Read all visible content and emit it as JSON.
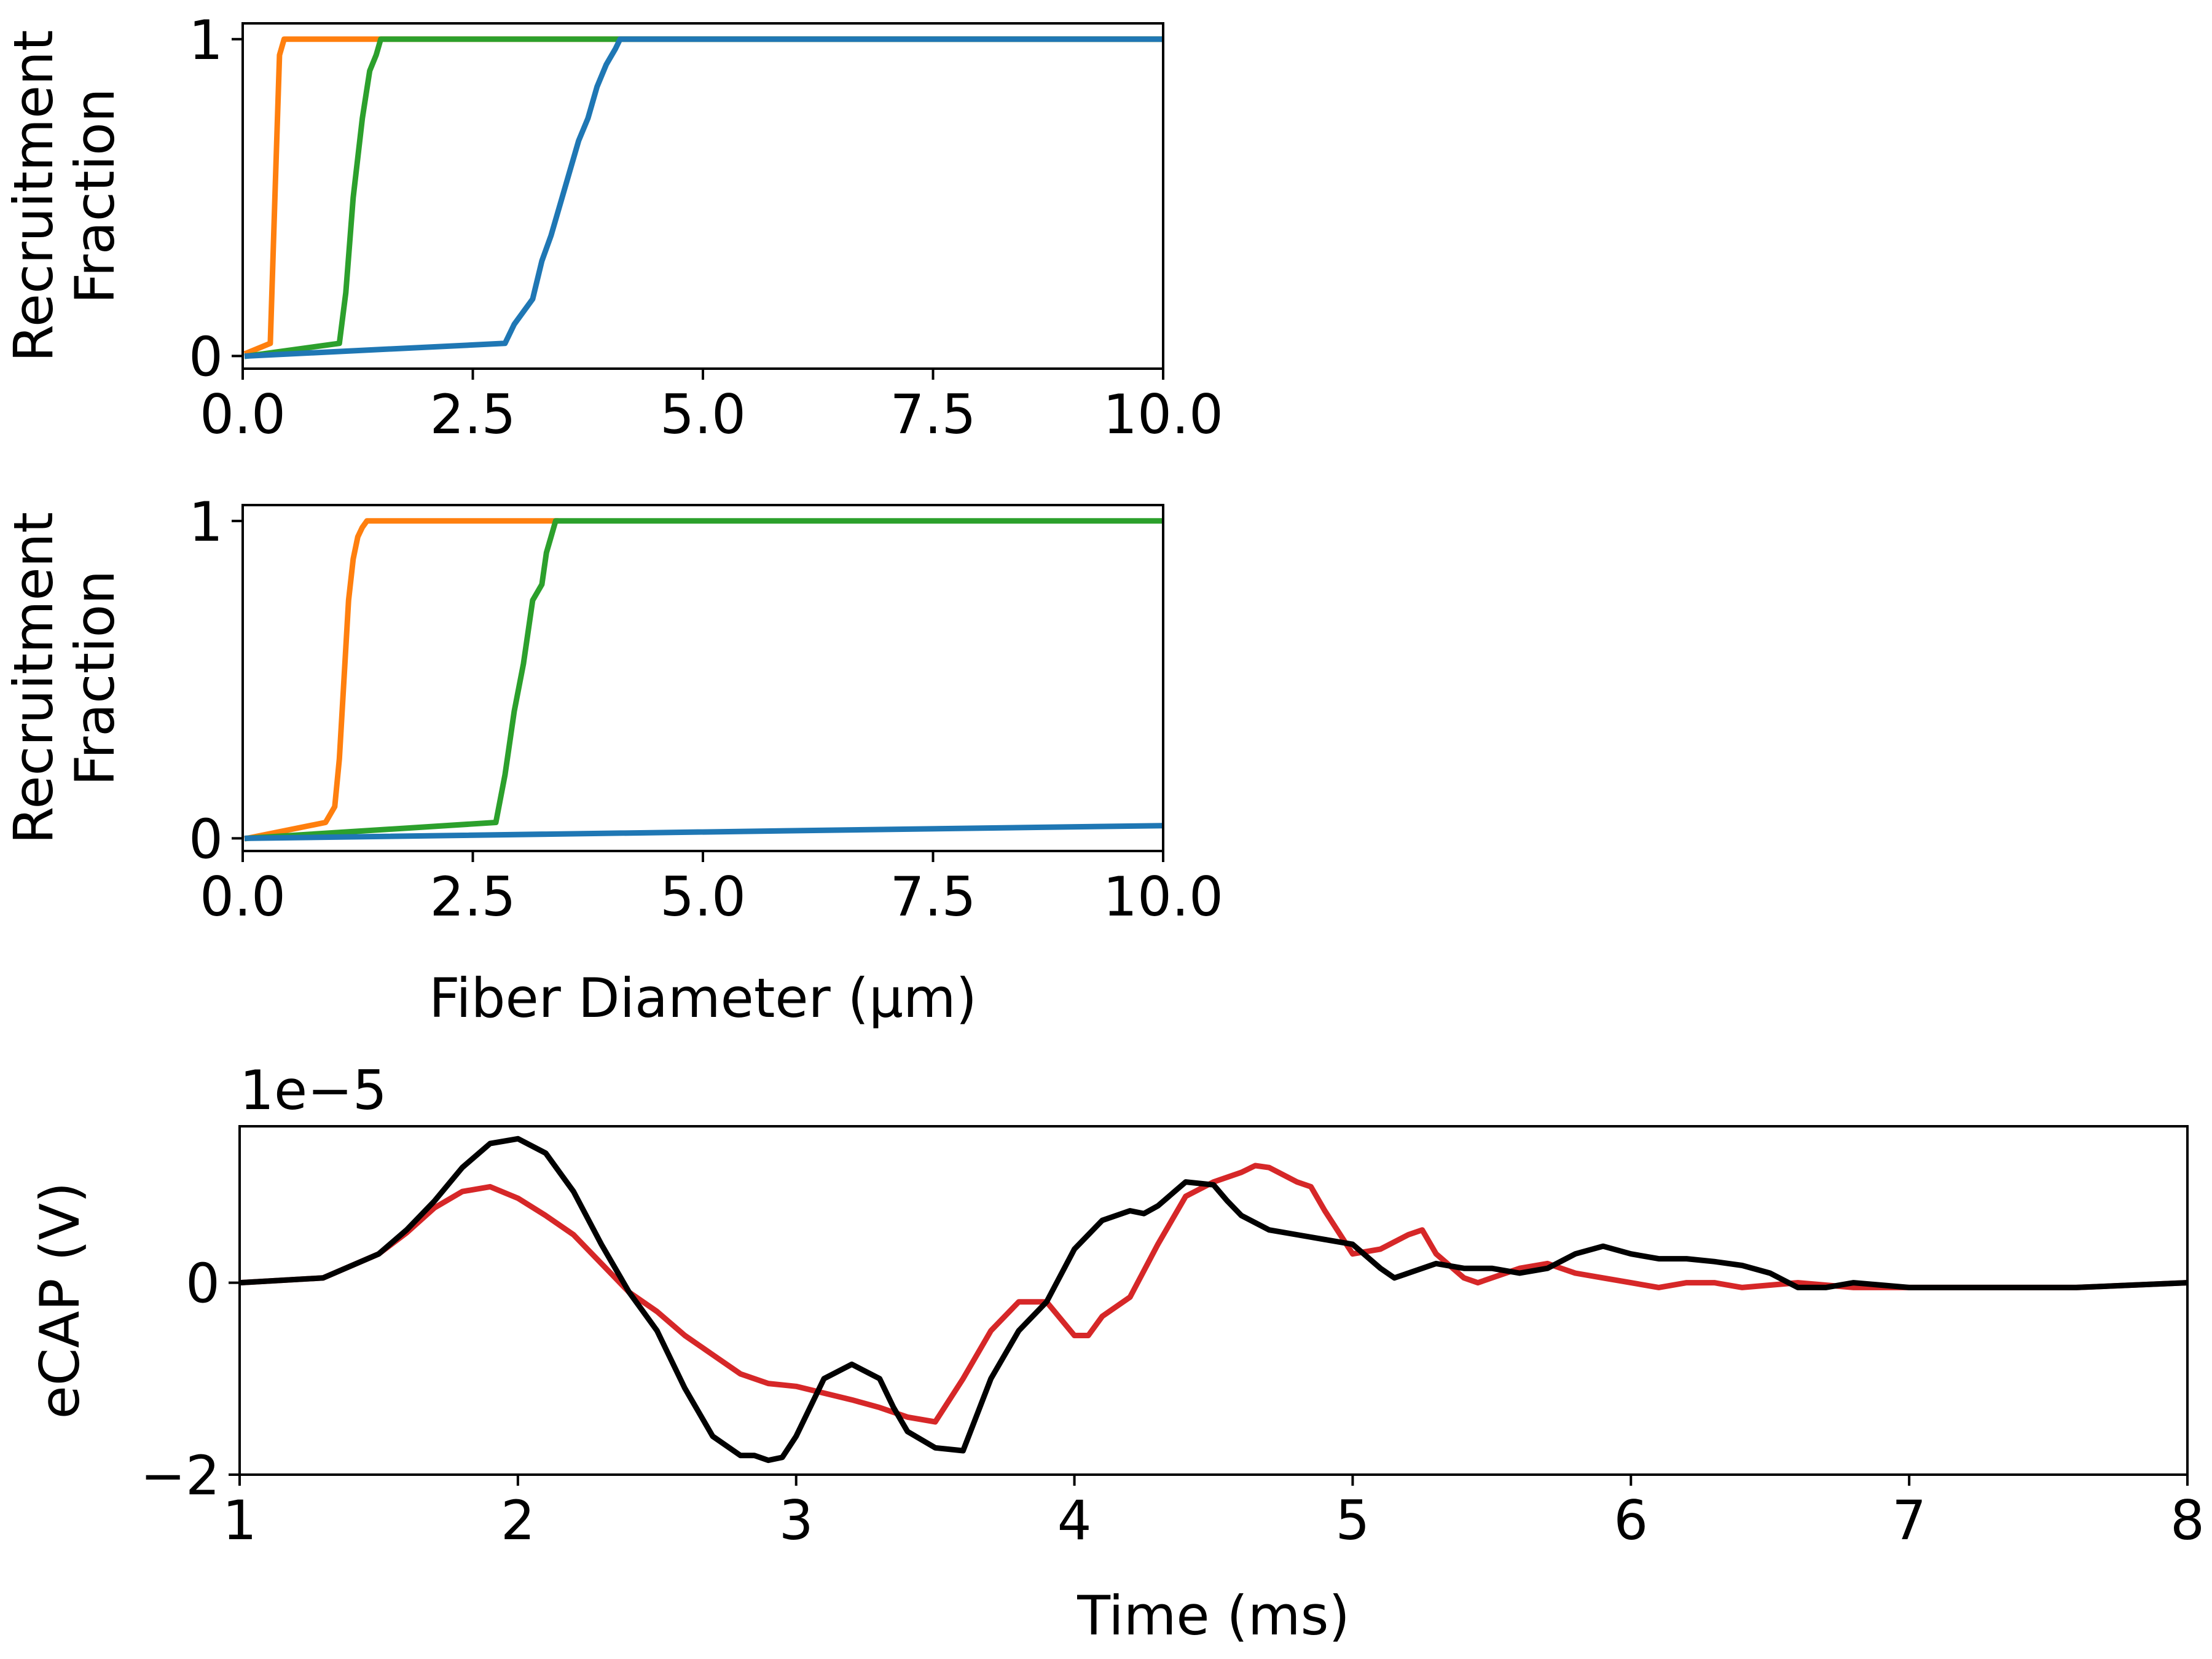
{
  "chart_data": [
    {
      "type": "line",
      "title": "",
      "xlabel": "",
      "ylabel": "Recruitment\nFraction",
      "ylabel_lines": [
        "Recruitment",
        "Fraction"
      ],
      "xlim": [
        0,
        10
      ],
      "ylim": [
        -0.04,
        1.05
      ],
      "xticks": [
        0,
        2.5,
        5,
        7.5,
        10
      ],
      "xtick_labels": [
        "0.0",
        "2.5",
        "5.0",
        "7.5",
        "10.0"
      ],
      "yticks": [
        0,
        1
      ],
      "ytick_labels": [
        "0",
        "1"
      ],
      "grid": false,
      "series": [
        {
          "color": "#ff7f0e",
          "x": [
            0.05,
            0.3,
            0.35,
            0.4,
            0.45,
            10
          ],
          "y": [
            0.01,
            0.04,
            0.5,
            0.95,
            1.0,
            1.0
          ]
        },
        {
          "color": "#2ca02c",
          "x": [
            0.05,
            1.05,
            1.12,
            1.2,
            1.3,
            1.38,
            1.45,
            1.5,
            10
          ],
          "y": [
            0.0,
            0.04,
            0.2,
            0.5,
            0.75,
            0.9,
            0.95,
            1.0,
            1.0
          ]
        },
        {
          "color": "#1f77b4",
          "x": [
            0.05,
            2.85,
            2.95,
            3.05,
            3.15,
            3.25,
            3.35,
            3.45,
            3.55,
            3.65,
            3.75,
            3.85,
            3.95,
            4.05,
            4.1,
            10
          ],
          "y": [
            0.0,
            0.04,
            0.1,
            0.14,
            0.18,
            0.3,
            0.38,
            0.48,
            0.58,
            0.68,
            0.75,
            0.85,
            0.92,
            0.97,
            1.0,
            1.0
          ]
        }
      ]
    },
    {
      "type": "line",
      "title": "",
      "xlabel": "Fiber Diameter (μm)",
      "ylabel": "Recruitment\nFraction",
      "ylabel_lines": [
        "Recruitment",
        "Fraction"
      ],
      "xlim": [
        0,
        10
      ],
      "ylim": [
        -0.04,
        1.05
      ],
      "xticks": [
        0,
        2.5,
        5,
        7.5,
        10
      ],
      "xtick_labels": [
        "0.0",
        "2.5",
        "5.0",
        "7.5",
        "10.0"
      ],
      "yticks": [
        0,
        1
      ],
      "ytick_labels": [
        "0",
        "1"
      ],
      "grid": false,
      "series": [
        {
          "color": "#ff7f0e",
          "x": [
            0.05,
            0.9,
            1.0,
            1.05,
            1.1,
            1.15,
            1.2,
            1.25,
            1.3,
            1.35,
            3.4
          ],
          "y": [
            0.0,
            0.05,
            0.1,
            0.25,
            0.5,
            0.75,
            0.88,
            0.95,
            0.98,
            1.0,
            1.0
          ]
        },
        {
          "color": "#2ca02c",
          "x": [
            0.05,
            2.75,
            2.85,
            2.95,
            3.05,
            3.15,
            3.25,
            3.3,
            3.35,
            3.4,
            10
          ],
          "y": [
            0.0,
            0.05,
            0.2,
            0.4,
            0.55,
            0.75,
            0.8,
            0.9,
            0.95,
            1.0,
            1.0
          ]
        },
        {
          "color": "#1f77b4",
          "x": [
            0.05,
            10
          ],
          "y": [
            0.0,
            0.04
          ]
        }
      ]
    },
    {
      "type": "line",
      "title": "",
      "xlabel": "Time (ms)",
      "ylabel": "eCAP (V)",
      "offset_text": "1e−5",
      "xlim": [
        1,
        8
      ],
      "ylim": [
        -2.0,
        1.63
      ],
      "xticks": [
        1,
        2,
        3,
        4,
        5,
        6,
        7,
        8
      ],
      "xtick_labels": [
        "1",
        "2",
        "3",
        "4",
        "5",
        "6",
        "7",
        "8"
      ],
      "yticks": [
        -2,
        0
      ],
      "ytick_labels": [
        "−2",
        "0"
      ],
      "grid": false,
      "series": [
        {
          "color": "#d62728",
          "x": [
            1.0,
            1.3,
            1.5,
            1.6,
            1.7,
            1.8,
            1.9,
            2.0,
            2.1,
            2.2,
            2.3,
            2.4,
            2.5,
            2.6,
            2.7,
            2.8,
            2.9,
            3.0,
            3.1,
            3.2,
            3.3,
            3.4,
            3.5,
            3.6,
            3.7,
            3.8,
            3.9,
            4.0,
            4.05,
            4.1,
            4.2,
            4.3,
            4.4,
            4.5,
            4.6,
            4.65,
            4.7,
            4.8,
            4.85,
            4.9,
            5.0,
            5.1,
            5.2,
            5.25,
            5.3,
            5.4,
            5.45,
            5.5,
            5.6,
            5.7,
            5.8,
            5.9,
            6.0,
            6.1,
            6.2,
            6.3,
            6.4,
            6.6,
            6.8,
            7.0,
            7.3,
            7.6,
            8.0
          ],
          "y": [
            0.0,
            0.05,
            0.3,
            0.52,
            0.78,
            0.95,
            1.0,
            0.88,
            0.7,
            0.5,
            0.2,
            -0.1,
            -0.3,
            -0.55,
            -0.75,
            -0.95,
            -1.05,
            -1.08,
            -1.15,
            -1.22,
            -1.3,
            -1.4,
            -1.45,
            -1.0,
            -0.5,
            -0.2,
            -0.2,
            -0.55,
            -0.55,
            -0.35,
            -0.15,
            0.4,
            0.9,
            1.05,
            1.15,
            1.22,
            1.2,
            1.05,
            1.0,
            0.75,
            0.3,
            0.35,
            0.5,
            0.55,
            0.3,
            0.05,
            0.0,
            0.05,
            0.15,
            0.2,
            0.1,
            0.05,
            0.0,
            -0.05,
            0.0,
            0.0,
            -0.05,
            0.0,
            -0.05,
            -0.05,
            -0.05,
            -0.05,
            0.0
          ]
        },
        {
          "color": "#000000",
          "x": [
            1.0,
            1.3,
            1.5,
            1.6,
            1.7,
            1.8,
            1.9,
            2.0,
            2.1,
            2.2,
            2.3,
            2.4,
            2.5,
            2.6,
            2.7,
            2.8,
            2.85,
            2.9,
            2.95,
            3.0,
            3.1,
            3.2,
            3.3,
            3.35,
            3.4,
            3.5,
            3.6,
            3.7,
            3.8,
            3.9,
            4.0,
            4.1,
            4.2,
            4.25,
            4.3,
            4.4,
            4.5,
            4.55,
            4.6,
            4.7,
            4.8,
            4.9,
            5.0,
            5.1,
            5.15,
            5.2,
            5.3,
            5.4,
            5.5,
            5.6,
            5.7,
            5.8,
            5.9,
            6.0,
            6.1,
            6.2,
            6.3,
            6.4,
            6.5,
            6.6,
            6.7,
            6.8,
            7.0,
            7.3,
            7.6,
            8.0
          ],
          "y": [
            0.0,
            0.05,
            0.3,
            0.55,
            0.85,
            1.2,
            1.45,
            1.5,
            1.35,
            0.95,
            0.4,
            -0.1,
            -0.5,
            -1.1,
            -1.6,
            -1.8,
            -1.8,
            -1.85,
            -1.82,
            -1.6,
            -1.0,
            -0.85,
            -1.0,
            -1.3,
            -1.55,
            -1.72,
            -1.75,
            -1.0,
            -0.5,
            -0.2,
            0.35,
            0.65,
            0.75,
            0.72,
            0.8,
            1.05,
            1.02,
            0.85,
            0.7,
            0.55,
            0.5,
            0.45,
            0.4,
            0.15,
            0.05,
            0.1,
            0.2,
            0.15,
            0.15,
            0.1,
            0.15,
            0.3,
            0.38,
            0.3,
            0.25,
            0.25,
            0.22,
            0.18,
            0.1,
            -0.05,
            -0.05,
            0.0,
            -0.05,
            -0.05,
            -0.05,
            0.0
          ]
        }
      ]
    }
  ]
}
